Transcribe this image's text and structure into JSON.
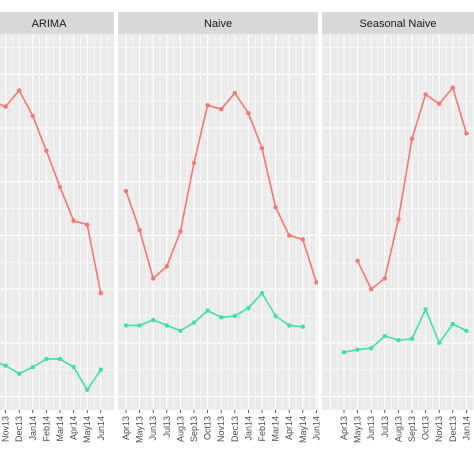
{
  "chart_data": {
    "type": "line",
    "facets": [
      {
        "title": "ARIMA",
        "x": [
          "Apr13",
          "May13",
          "Jun13",
          "Jul13",
          "Aug13",
          "Sep13",
          "Oct13",
          "Nov13",
          "Dec13",
          "Jan14",
          "Feb14",
          "Mar14",
          "Apr14",
          "May14",
          "Jun14"
        ],
        "visible_x_labels": [
          "Oct13",
          "Nov13",
          "Dec13",
          "Jan14",
          "Feb14",
          "Mar14",
          "Apr14",
          "May14",
          "Jun14"
        ],
        "series": [
          {
            "color": "#f8766d",
            "values": [
              null,
              null,
              null,
              null,
              null,
              null,
              100,
              96,
              108,
              89,
              63,
              36,
              11,
              8,
              -43
            ]
          },
          {
            "color": "#38e3b0",
            "values": [
              null,
              null,
              null,
              null,
              null,
              null,
              -93,
              -97,
              -103,
              -98,
              -92,
              -92,
              -98,
              -115,
              -100
            ]
          }
        ]
      },
      {
        "title": "Naive",
        "x": [
          "Apr13",
          "May13",
          "Jun13",
          "Jul13",
          "Aug13",
          "Sep13",
          "Oct13",
          "Nov13",
          "Dec13",
          "Jan14",
          "Feb14",
          "Mar14",
          "Apr14",
          "May14",
          "Jun14"
        ],
        "visible_x_labels": [
          "Apr13",
          "May13",
          "Jun13",
          "Jul13",
          "Aug13",
          "Sep13",
          "Oct13",
          "Nov13",
          "Dec13",
          "Jan14",
          "Feb14",
          "Mar14",
          "Apr14",
          "May14",
          "Jun14"
        ],
        "series": [
          {
            "color": "#f8766d",
            "values": [
              33,
              4,
              -32,
              -23,
              3,
              54,
              97,
              94,
              106,
              91,
              65,
              21,
              0,
              -3,
              -35
            ]
          },
          {
            "color": "#38e3b0",
            "values": [
              -67,
              -67,
              -63,
              -67,
              -71,
              -65,
              -56,
              -61,
              -60,
              -54,
              -43,
              -60,
              -67,
              -68,
              null
            ]
          }
        ]
      },
      {
        "title": "Seasonal Naive",
        "x": [
          "Apr13",
          "May13",
          "Jun13",
          "Jul13",
          "Aug13",
          "Sep13",
          "Oct13",
          "Nov13",
          "Dec13",
          "Jan14"
        ],
        "visible_x_labels": [
          "Apr13",
          "May13",
          "Jun13",
          "Jul13",
          "Aug13",
          "Sep13",
          "Oct13",
          "Nov13",
          "Dec13",
          "Jan14",
          "Feb14",
          "Mar14",
          "Apr14",
          "May14"
        ],
        "series": [
          {
            "color": "#f8766d",
            "values": [
              null,
              -19,
              -40,
              -32,
              12,
              72,
              105,
              98,
              110,
              76
            ]
          },
          {
            "color": "#38e3b0",
            "values": [
              -87,
              -85,
              -84,
              -75,
              -78,
              -77,
              -55,
              -80,
              -66,
              -71
            ]
          }
        ]
      }
    ],
    "ylim": [
      -130,
      150
    ],
    "grid": true
  }
}
